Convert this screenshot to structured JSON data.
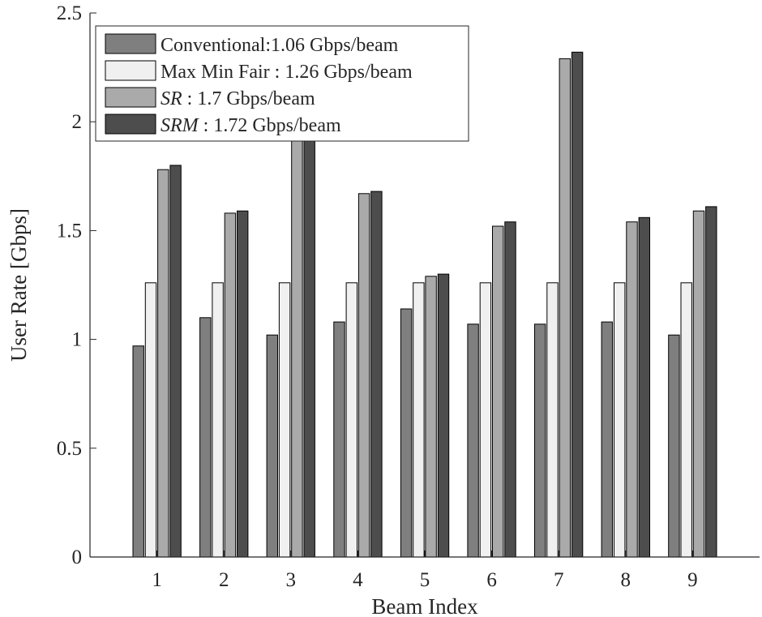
{
  "chart_data": {
    "type": "bar",
    "title": "",
    "xlabel": "Beam Index",
    "ylabel": "User Rate [Gbps]",
    "ylim": [
      0,
      2.5
    ],
    "xlim": [
      0,
      10
    ],
    "grid": false,
    "legend_position": "top-left",
    "categories": [
      "1",
      "2",
      "3",
      "4",
      "5",
      "6",
      "7",
      "8",
      "9"
    ],
    "y_ticks": [
      {
        "value": 0,
        "label": "0"
      },
      {
        "value": 0.5,
        "label": "0.5"
      },
      {
        "value": 1,
        "label": "1"
      },
      {
        "value": 1.5,
        "label": "1.5"
      },
      {
        "value": 2,
        "label": "2"
      },
      {
        "value": 2.5,
        "label": "2.5"
      }
    ],
    "series": [
      {
        "legend_script": "",
        "legend_text": "Conventional:1.06 Gbps/beam",
        "color": "#7f7f7f",
        "values": [
          0.97,
          1.1,
          1.02,
          1.08,
          1.14,
          1.07,
          1.07,
          1.08,
          1.02
        ]
      },
      {
        "legend_script": "",
        "legend_text": "Max Min Fair : 1.26 Gbps/beam",
        "color": "#f0f0f0",
        "values": [
          1.26,
          1.26,
          1.26,
          1.26,
          1.26,
          1.26,
          1.26,
          1.26,
          1.26
        ]
      },
      {
        "legend_script": "SR",
        "legend_text": " : 1.7 Gbps/beam",
        "color": "#aaaaaa",
        "values": [
          1.78,
          1.58,
          2.03,
          1.67,
          1.29,
          1.52,
          2.29,
          1.54,
          1.59
        ]
      },
      {
        "legend_script": "SRM",
        "legend_text": " : 1.72 Gbps/beam",
        "color": "#4d4d4d",
        "values": [
          1.8,
          1.59,
          2.06,
          1.68,
          1.3,
          1.54,
          2.32,
          1.56,
          1.61
        ]
      }
    ]
  }
}
